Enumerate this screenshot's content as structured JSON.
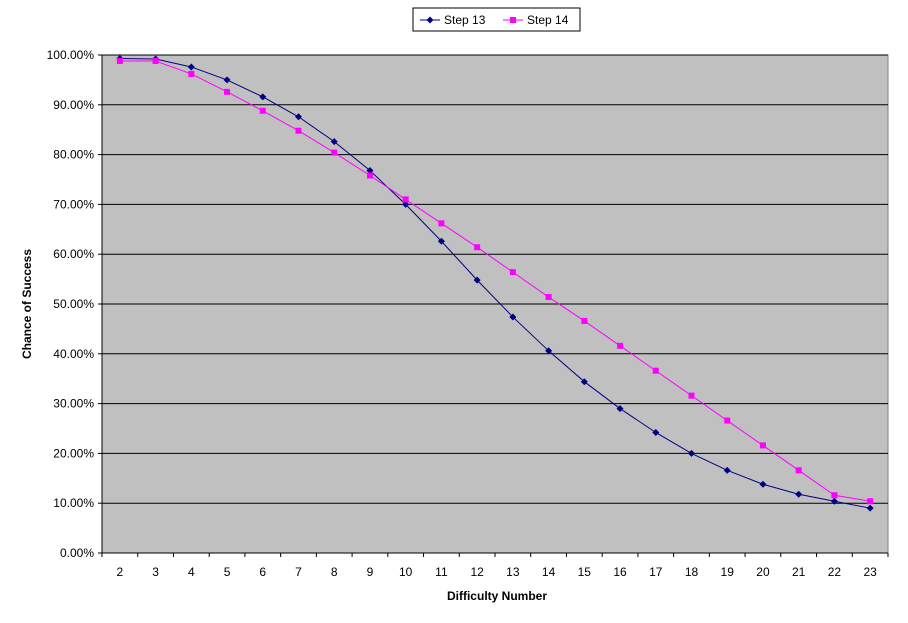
{
  "chart_data": {
    "type": "line",
    "xlabel": "Difficulty Number",
    "ylabel": "Chance of Success",
    "x": [
      2,
      3,
      4,
      5,
      6,
      7,
      8,
      9,
      10,
      11,
      12,
      13,
      14,
      15,
      16,
      17,
      18,
      19,
      20,
      21,
      22,
      23
    ],
    "ylim": [
      0,
      100
    ],
    "yticks": [
      "0.00%",
      "10.00%",
      "20.00%",
      "30.00%",
      "40.00%",
      "50.00%",
      "60.00%",
      "70.00%",
      "80.00%",
      "90.00%",
      "100.00%"
    ],
    "grid": true,
    "legend_position": "top-center",
    "plot_background": "#c0c0c0",
    "series": [
      {
        "name": "Step 13",
        "color": "#000080",
        "marker": "diamond",
        "values": [
          99.3,
          99.2,
          97.6,
          95.0,
          91.6,
          87.6,
          82.6,
          76.8,
          70.0,
          62.6,
          54.8,
          47.4,
          40.6,
          34.4,
          29.0,
          24.2,
          20.0,
          16.6,
          13.8,
          11.8,
          10.4,
          9.0
        ]
      },
      {
        "name": "Step 14",
        "color": "#ff00ff",
        "marker": "square",
        "values": [
          98.8,
          98.8,
          96.2,
          92.6,
          88.8,
          84.8,
          80.4,
          75.8,
          71.0,
          66.2,
          61.4,
          56.4,
          51.4,
          46.6,
          41.6,
          36.6,
          31.6,
          26.6,
          21.6,
          16.6,
          11.6,
          10.4
        ]
      }
    ]
  }
}
